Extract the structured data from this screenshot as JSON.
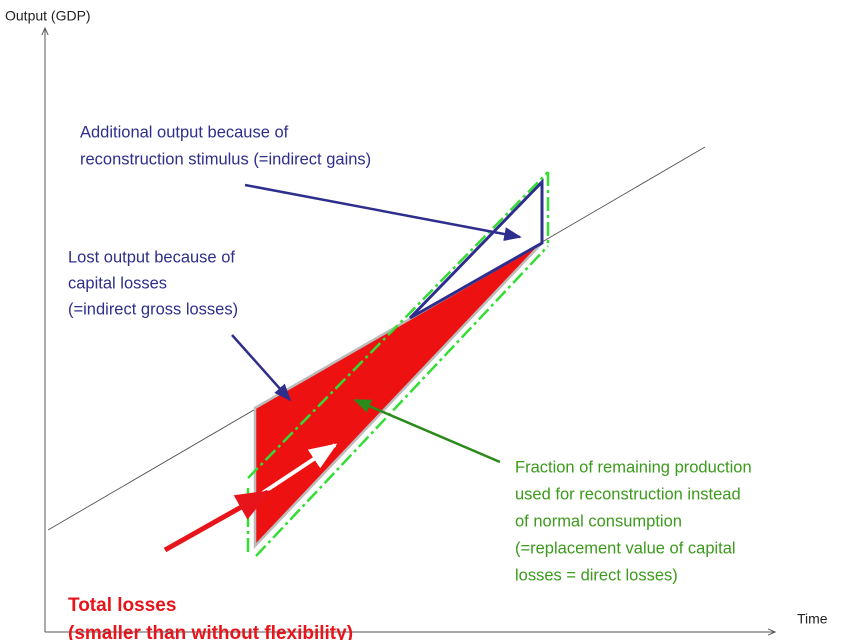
{
  "y_axis_label": "Output (GDP)",
  "x_axis_label": "Time",
  "annotations": {
    "indirect_gains": [
      "Additional output because of",
      "reconstruction stimulus (=indirect gains)"
    ],
    "indirect_losses": [
      "Lost output because of",
      "capital losses",
      "(=indirect gross losses)"
    ],
    "direct_losses": [
      "Fraction of remaining production",
      "used for reconstruction instead",
      "of normal consumption",
      "(=replacement value of capital",
      "losses = direct losses)"
    ],
    "total_losses": [
      "Total losses",
      "(smaller than without flexibility)"
    ]
  }
}
